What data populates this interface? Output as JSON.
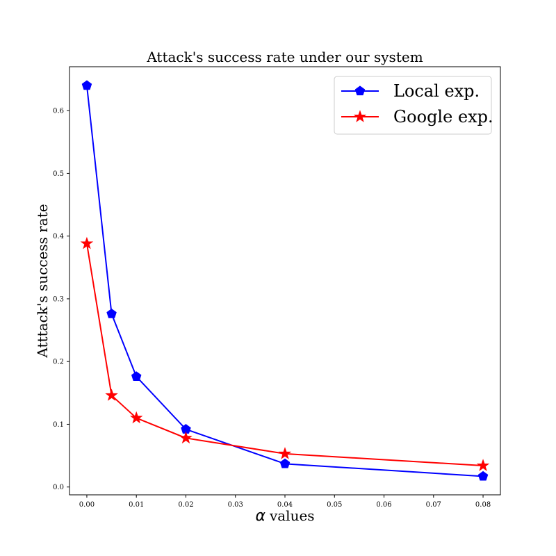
{
  "chart_data": {
    "type": "line",
    "title": "Attack's success rate under our system",
    "xlabel_symbol": "α",
    "xlabel": "values",
    "ylabel": "Atttack's success rate",
    "xlim": [
      -0.0035,
      0.0835
    ],
    "ylim": [
      -0.0125,
      0.67
    ],
    "x_ticks": [
      0.0,
      0.01,
      0.02,
      0.03,
      0.04,
      0.05,
      0.06,
      0.07,
      0.08
    ],
    "x_tick_labels": [
      "0.00",
      "0.01",
      "0.02",
      "0.03",
      "0.04",
      "0.05",
      "0.06",
      "0.07",
      "0.08"
    ],
    "y_ticks": [
      0.0,
      0.1,
      0.2,
      0.3,
      0.4,
      0.5,
      0.6
    ],
    "y_tick_labels": [
      "0.0",
      "0.1",
      "0.2",
      "0.3",
      "0.4",
      "0.5",
      "0.6"
    ],
    "grid": false,
    "legend_position": "top-right",
    "x": [
      0.0,
      0.005,
      0.01,
      0.02,
      0.04,
      0.08
    ],
    "series": [
      {
        "name": "Local exp.",
        "color": "#0000ff",
        "marker": "pentagon",
        "values": [
          0.64,
          0.276,
          0.176,
          0.092,
          0.037,
          0.017
        ]
      },
      {
        "name": "Google exp.",
        "color": "#ff0000",
        "marker": "star",
        "values": [
          0.388,
          0.146,
          0.11,
          0.078,
          0.053,
          0.034
        ]
      }
    ]
  }
}
